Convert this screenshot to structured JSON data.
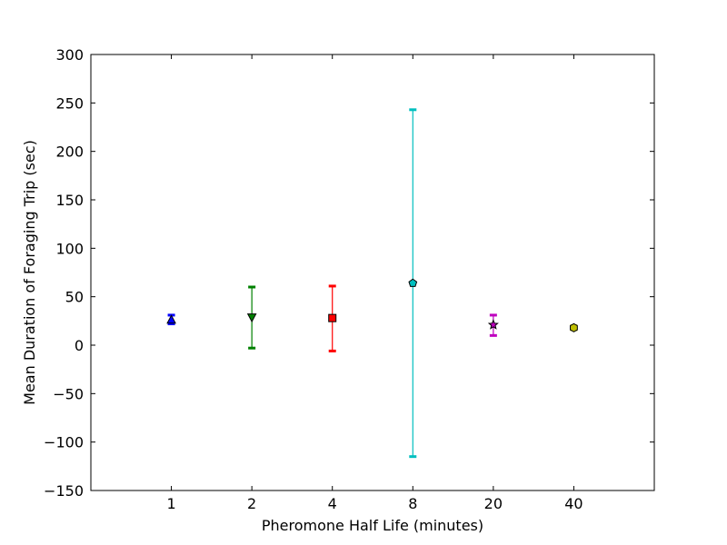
{
  "chart_data": {
    "type": "scatter",
    "title": "",
    "xlabel": "Pheromone Half Life (minutes)",
    "ylabel": "Mean Duration of Foraging Trip (sec)",
    "categories": [
      "1",
      "2",
      "4",
      "8",
      "20",
      "40"
    ],
    "ylim": [
      -150,
      300
    ],
    "yticks": [
      -150,
      -100,
      -50,
      0,
      50,
      100,
      150,
      200,
      250,
      300
    ],
    "ytick_labels": [
      "−150",
      "−100",
      "−50",
      "0",
      "50",
      "100",
      "150",
      "200",
      "250",
      "300"
    ],
    "grid": false,
    "legend": "none",
    "points": [
      {
        "x": "1",
        "y": 26,
        "lower": 22,
        "upper": 31,
        "color": "#0000ff",
        "marker": "triangle-up"
      },
      {
        "x": "2",
        "y": 29,
        "lower": -3,
        "upper": 60,
        "color": "#008000",
        "marker": "triangle-down"
      },
      {
        "x": "4",
        "y": 28,
        "lower": -6,
        "upper": 61,
        "color": "#ff0000",
        "marker": "square"
      },
      {
        "x": "8",
        "y": 64,
        "lower": -115,
        "upper": 243,
        "color": "#00bfbf",
        "marker": "pentagon"
      },
      {
        "x": "20",
        "y": 21,
        "lower": 10,
        "upper": 31,
        "color": "#bf00bf",
        "marker": "star"
      },
      {
        "x": "40",
        "y": 18,
        "lower": 16,
        "upper": 20,
        "color": "#bfbf00",
        "marker": "hexagon"
      }
    ]
  }
}
